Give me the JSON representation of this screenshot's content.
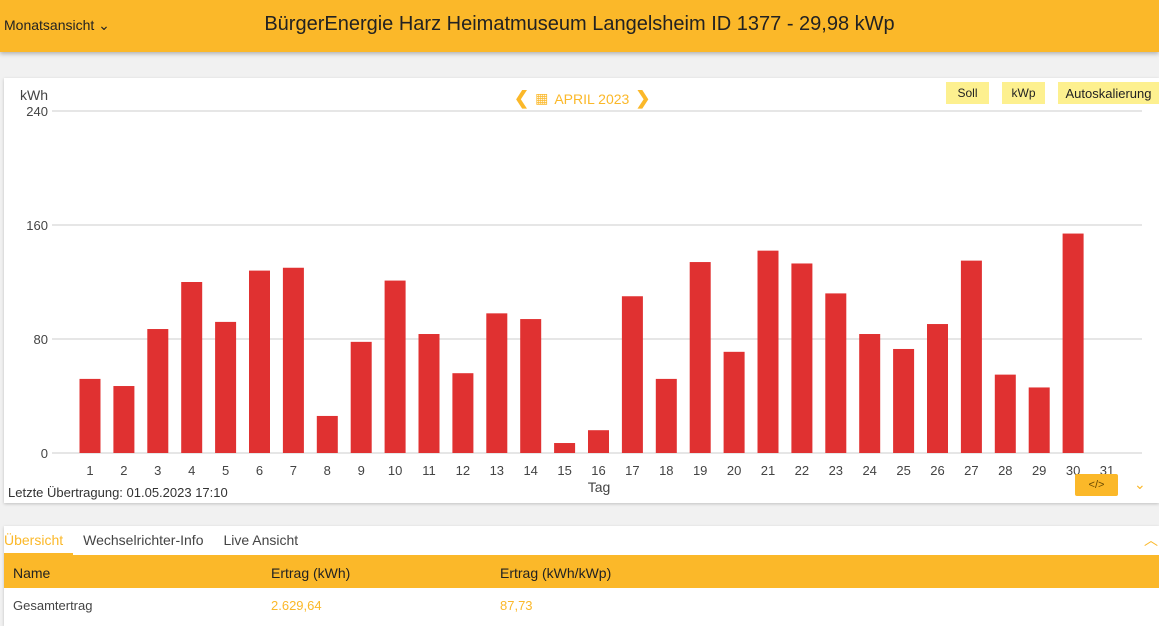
{
  "header": {
    "view_select": "Monatsansicht",
    "title": "BürgerEnergie Harz Heimatmuseum Langelsheim ID 1377 - 29,98 kWp"
  },
  "chart_nav": {
    "period": "APRIL 2023",
    "prev_icon": "chevron-left-icon",
    "next_icon": "chevron-right-icon",
    "calendar_icon": "calendar-icon"
  },
  "buttons": {
    "soll": "Soll",
    "kwp": "kWp",
    "autoscale": "Autoskalierung"
  },
  "last_transmission": "Letzte Übertragung: 01.05.2023 17:10",
  "colors": {
    "accent": "#fbb829",
    "bar": "#e03131",
    "button": "#fdf08f"
  },
  "chart_data": {
    "type": "bar",
    "ylabel": "kWh",
    "xlabel": "Tag",
    "ylim": [
      0,
      240
    ],
    "yticks": [
      0,
      80,
      160,
      240
    ],
    "grid": true,
    "categories": [
      "1",
      "2",
      "3",
      "4",
      "5",
      "6",
      "7",
      "8",
      "9",
      "10",
      "11",
      "12",
      "13",
      "14",
      "15",
      "16",
      "17",
      "18",
      "19",
      "20",
      "21",
      "22",
      "23",
      "24",
      "25",
      "26",
      "27",
      "28",
      "29",
      "30",
      "31"
    ],
    "values": [
      52,
      47,
      87,
      120,
      92,
      128,
      130,
      26,
      78,
      121,
      83.5,
      56,
      98,
      94,
      7,
      16,
      110,
      52,
      134,
      71,
      142,
      133,
      112,
      83.5,
      73,
      90.5,
      135,
      55,
      46,
      154,
      0
    ]
  },
  "tabs": [
    "Übersicht",
    "Wechselrichter-Info",
    "Live Ansicht"
  ],
  "table": {
    "headers": [
      "Name",
      "Ertrag (kWh)",
      "Ertrag (kWh/kWp)"
    ],
    "rows": [
      [
        "Gesamtertrag",
        "2.629,64",
        "87,73"
      ]
    ]
  }
}
